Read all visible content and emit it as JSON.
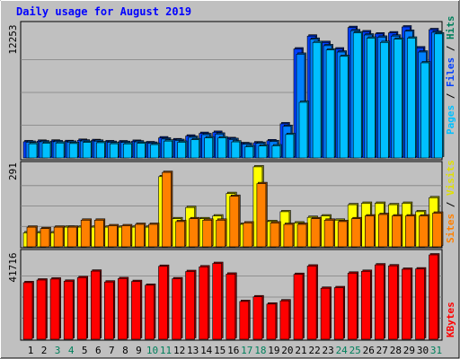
{
  "chart_data": {
    "title": "Daily usage for August 2019",
    "type": "bar",
    "days": [
      "1",
      "2",
      "3",
      "4",
      "5",
      "6",
      "7",
      "8",
      "9",
      "10",
      "11",
      "12",
      "13",
      "14",
      "15",
      "16",
      "17",
      "18",
      "19",
      "20",
      "21",
      "22",
      "23",
      "24",
      "25",
      "26",
      "27",
      "28",
      "29",
      "30",
      "31"
    ],
    "weekend_days": [
      "3",
      "4",
      "10",
      "11",
      "17",
      "18",
      "24",
      "25",
      "31"
    ],
    "panels": [
      {
        "id": "hits",
        "ymax": 12253,
        "ymax_label": "12253",
        "legend": [
          {
            "label": "Pages",
            "color": "#00c0ff"
          },
          {
            "label": "Files",
            "color": "#0040ff"
          },
          {
            "label": "Hits",
            "color": "#00805c"
          }
        ],
        "series": [
          {
            "name": "Hits",
            "color": "#0040ff",
            "values": [
              1520,
              1570,
              1580,
              1540,
              1650,
              1630,
              1520,
              1510,
              1560,
              1430,
              1880,
              1700,
              2050,
              2300,
              2400,
              1810,
              1340,
              1420,
              1610,
              3200,
              10200,
              11400,
              10800,
              10200,
              12200,
              11800,
              11600,
              11700,
              12250,
              10300,
              12000
            ]
          },
          {
            "name": "Files",
            "color": "#0080ff",
            "values": [
              1470,
              1510,
              1520,
              1480,
              1590,
              1570,
              1460,
              1450,
              1500,
              1380,
              1770,
              1640,
              1930,
              2180,
              2230,
              1730,
              1290,
              1370,
              1530,
              2950,
              9700,
              11100,
              10500,
              9900,
              11900,
              11500,
              11300,
              11400,
              11850,
              9900,
              11750
            ]
          },
          {
            "name": "Pages",
            "color": "#00c0ff",
            "values": [
              1330,
              1380,
              1390,
              1350,
              1450,
              1430,
              1330,
              1320,
              1370,
              1250,
              1580,
              1470,
              1700,
              1880,
              1880,
              1500,
              1050,
              1120,
              1130,
              2200,
              5200,
              10800,
              10100,
              9500,
              11700,
              11200,
              10800,
              11100,
              11200,
              8900,
              11600
            ]
          }
        ]
      },
      {
        "id": "visits",
        "ymax": 291,
        "ymax_label": "291",
        "legend": [
          {
            "label": "Sites",
            "color": "#ff8000"
          },
          {
            "label": "Visits",
            "color": "#e0e000"
          }
        ],
        "series": [
          {
            "name": "Visits",
            "color": "#ffff00",
            "values": [
              50,
              50,
              50,
              70,
              70,
              70,
              70,
              70,
              70,
              70,
              250,
              100,
              140,
              100,
              110,
              190,
              80,
              285,
              90,
              125,
              85,
              105,
              110,
              95,
              150,
              155,
              155,
              150,
              155,
              125,
              175
            ]
          },
          {
            "name": "Sites",
            "color": "#ff8000",
            "values": [
              70,
              65,
              70,
              70,
              95,
              95,
              75,
              75,
              80,
              80,
              265,
              90,
              100,
              95,
              95,
              180,
              85,
              225,
              85,
              80,
              80,
              100,
              95,
              90,
              100,
              110,
              115,
              110,
              110,
              110,
              120
            ]
          }
        ]
      },
      {
        "id": "kbytes",
        "ymax": 41716,
        "ymax_label": "41716",
        "legend": [
          {
            "label": "KBytes",
            "color": "#ff0000"
          }
        ],
        "series": [
          {
            "name": "KBytes",
            "color": "#ff0000",
            "values": [
              28000,
              29300,
              29800,
              28700,
              30500,
              33700,
              28300,
              30000,
              28600,
              26700,
              36100,
              29900,
              33500,
              35800,
              37500,
              32200,
              18700,
              21000,
              17400,
              19000,
              32100,
              36200,
              25200,
              25500,
              32700,
              33600,
              36800,
              36300,
              34600,
              34800,
              41700
            ]
          }
        ]
      }
    ]
  }
}
